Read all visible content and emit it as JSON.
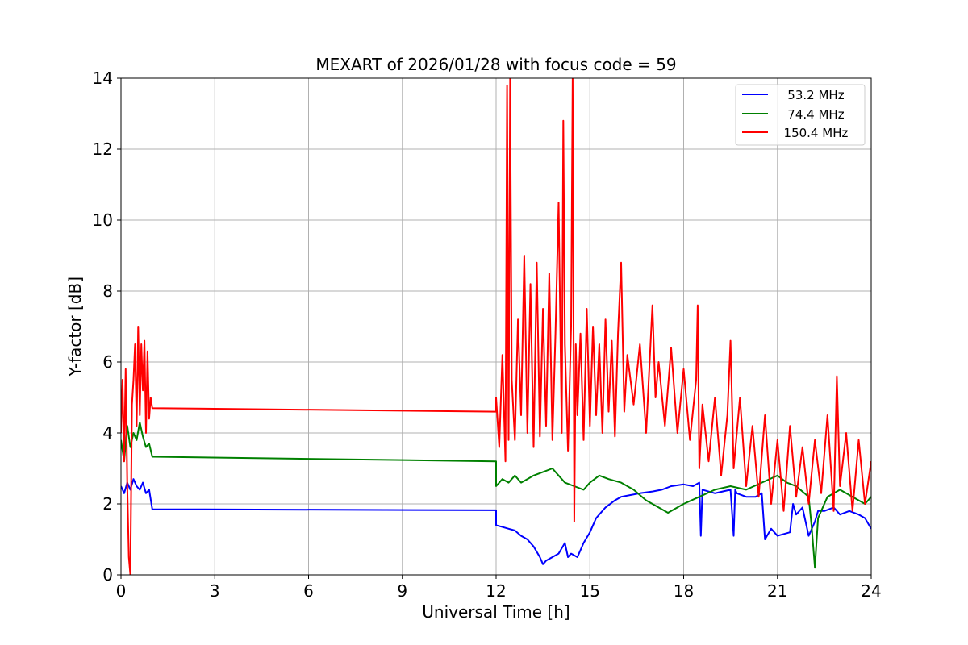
{
  "chart_data": {
    "type": "line",
    "title": "MEXART of 2026/01/28 with focus code = 59",
    "xlabel": "Universal Time [h]",
    "ylabel": "Y-factor [dB]",
    "xlim": [
      0,
      24
    ],
    "ylim": [
      0,
      14
    ],
    "xticks": [
      0,
      3,
      6,
      9,
      12,
      15,
      18,
      21,
      24
    ],
    "yticks": [
      0,
      2,
      4,
      6,
      8,
      10,
      12,
      14
    ],
    "grid": true,
    "legend_position": "top-right",
    "series": [
      {
        "name": "   53.2 MHz",
        "color": "#0000ff",
        "x": [
          0,
          0.1,
          0.2,
          0.3,
          0.4,
          0.5,
          0.6,
          0.7,
          0.8,
          0.9,
          1.0,
          12.0,
          12.0,
          12.2,
          12.4,
          12.6,
          12.8,
          13.0,
          13.2,
          13.4,
          13.5,
          13.6,
          13.8,
          14.0,
          14.2,
          14.3,
          14.4,
          14.6,
          14.8,
          15.0,
          15.2,
          15.5,
          15.8,
          16.0,
          16.3,
          16.6,
          17.0,
          17.3,
          17.6,
          18.0,
          18.3,
          18.5,
          18.55,
          18.6,
          19.0,
          19.5,
          19.6,
          19.65,
          19.7,
          20.0,
          20.3,
          20.5,
          20.6,
          20.8,
          21.0,
          21.4,
          21.5,
          21.6,
          21.8,
          22.0,
          22.2,
          22.3,
          22.5,
          22.8,
          23.0,
          23.3,
          23.6,
          23.8,
          24.0
        ],
        "y": [
          2.5,
          2.3,
          2.6,
          2.4,
          2.7,
          2.5,
          2.4,
          2.6,
          2.3,
          2.4,
          1.85,
          1.82,
          1.4,
          1.35,
          1.3,
          1.25,
          1.1,
          1.0,
          0.8,
          0.5,
          0.3,
          0.4,
          0.5,
          0.6,
          0.9,
          0.5,
          0.6,
          0.5,
          0.9,
          1.2,
          1.6,
          1.9,
          2.1,
          2.2,
          2.25,
          2.3,
          2.35,
          2.4,
          2.5,
          2.55,
          2.5,
          2.6,
          1.1,
          2.4,
          2.3,
          2.4,
          1.1,
          2.4,
          2.3,
          2.2,
          2.2,
          2.3,
          1.0,
          1.3,
          1.1,
          1.2,
          2.0,
          1.7,
          1.9,
          1.1,
          1.5,
          1.8,
          1.8,
          1.9,
          1.7,
          1.8,
          1.7,
          1.6,
          1.3
        ]
      },
      {
        "name": "   74.4 MHz",
        "color": "#008000",
        "x": [
          0,
          0.1,
          0.2,
          0.3,
          0.4,
          0.5,
          0.6,
          0.7,
          0.8,
          0.9,
          1.0,
          12.0,
          12.0,
          12.2,
          12.4,
          12.6,
          12.8,
          13.0,
          13.2,
          13.5,
          13.8,
          14.0,
          14.2,
          14.5,
          14.8,
          15.0,
          15.3,
          15.6,
          16.0,
          16.4,
          16.8,
          17.2,
          17.5,
          18.0,
          18.5,
          19.0,
          19.5,
          20.0,
          20.5,
          21.0,
          21.3,
          21.6,
          22.0,
          22.1,
          22.2,
          22.3,
          22.6,
          23.0,
          23.4,
          23.8,
          24.0
        ],
        "y": [
          3.8,
          3.2,
          4.2,
          3.6,
          4.0,
          3.8,
          4.3,
          3.9,
          3.6,
          3.7,
          3.33,
          3.2,
          2.5,
          2.7,
          2.6,
          2.8,
          2.6,
          2.7,
          2.8,
          2.9,
          3.0,
          2.8,
          2.6,
          2.5,
          2.4,
          2.6,
          2.8,
          2.7,
          2.6,
          2.4,
          2.1,
          1.9,
          1.75,
          2.0,
          2.2,
          2.4,
          2.5,
          2.4,
          2.6,
          2.8,
          2.6,
          2.5,
          2.2,
          1.3,
          0.2,
          1.6,
          2.2,
          2.4,
          2.2,
          2.0,
          2.2
        ]
      },
      {
        "name": "  150.4 MHz",
        "color": "#ff0000",
        "x": [
          0,
          0.05,
          0.1,
          0.15,
          0.2,
          0.25,
          0.3,
          0.35,
          0.4,
          0.45,
          0.5,
          0.55,
          0.6,
          0.65,
          0.7,
          0.75,
          0.8,
          0.85,
          0.9,
          0.95,
          1.0,
          12.0,
          12.0,
          12.1,
          12.2,
          12.3,
          12.35,
          12.4,
          12.45,
          12.5,
          12.6,
          12.7,
          12.8,
          12.9,
          13.0,
          13.1,
          13.2,
          13.3,
          13.4,
          13.5,
          13.6,
          13.7,
          13.8,
          13.9,
          14.0,
          14.1,
          14.15,
          14.2,
          14.3,
          14.4,
          14.45,
          14.5,
          14.55,
          14.6,
          14.7,
          14.8,
          14.9,
          15.0,
          15.1,
          15.2,
          15.3,
          15.4,
          15.5,
          15.6,
          15.7,
          15.8,
          15.9,
          16.0,
          16.1,
          16.2,
          16.4,
          16.6,
          16.8,
          17.0,
          17.1,
          17.2,
          17.4,
          17.6,
          17.8,
          18.0,
          18.2,
          18.4,
          18.45,
          18.5,
          18.6,
          18.8,
          19.0,
          19.2,
          19.4,
          19.5,
          19.6,
          19.8,
          20.0,
          20.2,
          20.4,
          20.6,
          20.8,
          21.0,
          21.2,
          21.4,
          21.6,
          21.8,
          22.0,
          22.2,
          22.4,
          22.6,
          22.8,
          22.9,
          23.0,
          23.2,
          23.4,
          23.6,
          23.8,
          24.0
        ],
        "y": [
          4.0,
          5.5,
          3.2,
          5.8,
          2.5,
          0.5,
          0.0,
          4.8,
          5.5,
          6.5,
          4.2,
          7.0,
          4.5,
          6.5,
          5.2,
          6.6,
          4.0,
          6.3,
          4.4,
          5.0,
          4.7,
          4.6,
          5.0,
          3.6,
          6.2,
          3.2,
          13.8,
          3.8,
          14.0,
          5.5,
          3.8,
          7.2,
          4.5,
          9.0,
          4.0,
          8.2,
          3.6,
          8.8,
          3.9,
          7.5,
          4.2,
          8.5,
          3.8,
          6.8,
          10.5,
          4.0,
          12.8,
          6.5,
          3.5,
          7.0,
          14.0,
          1.5,
          6.5,
          4.5,
          6.8,
          3.8,
          7.5,
          4.2,
          7.0,
          4.5,
          6.5,
          4.0,
          7.2,
          4.6,
          6.6,
          3.9,
          6.8,
          8.8,
          4.6,
          6.2,
          4.8,
          6.5,
          4.0,
          7.6,
          5.0,
          6.0,
          4.2,
          6.4,
          4.0,
          5.8,
          3.8,
          5.5,
          7.6,
          3.0,
          4.8,
          3.2,
          5.0,
          2.8,
          4.5,
          6.6,
          3.0,
          5.0,
          2.5,
          4.2,
          2.2,
          4.5,
          2.0,
          3.8,
          1.8,
          4.2,
          2.2,
          3.6,
          2.0,
          3.8,
          2.3,
          4.5,
          1.8,
          5.6,
          2.5,
          4.0,
          1.8,
          3.8,
          2.0,
          3.2
        ]
      }
    ]
  }
}
